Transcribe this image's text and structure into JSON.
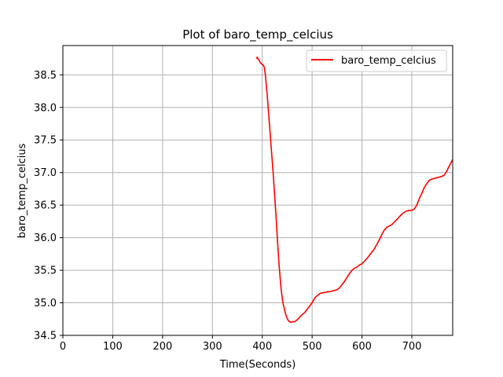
{
  "colors": {
    "series": "#ff0000",
    "grid": "#b0b0b0",
    "axes": "#000000",
    "background": "#ffffff"
  },
  "chart_data": {
    "type": "line",
    "title": "Plot of baro_temp_celcius",
    "xlabel": "Time(Seconds)",
    "ylabel": "baro_temp_celcius",
    "xlim": [
      0,
      782
    ],
    "ylim": [
      34.5,
      38.95
    ],
    "xticks": [
      0,
      100,
      200,
      300,
      400,
      500,
      600,
      700
    ],
    "xtick_labels": [
      "0",
      "100",
      "200",
      "300",
      "400",
      "500",
      "600",
      "700"
    ],
    "yticks": [
      34.5,
      35.0,
      35.5,
      36.0,
      36.5,
      37.0,
      37.5,
      38.0,
      38.5
    ],
    "ytick_labels": [
      "34.5",
      "35.0",
      "35.5",
      "36.0",
      "36.5",
      "37.0",
      "37.5",
      "38.0",
      "38.5"
    ],
    "grid": true,
    "legend": {
      "position": "top-right",
      "entries": [
        "baro_temp_celcius"
      ]
    },
    "series": [
      {
        "name": "baro_temp_celcius",
        "color": "#ff0000",
        "x": [
          388,
          390,
          392,
          394,
          396,
          398,
          400,
          402,
          404,
          406,
          408,
          410,
          412,
          414,
          416,
          418,
          420,
          422,
          424,
          426,
          428,
          430,
          432,
          434,
          436,
          438,
          440,
          442,
          444,
          446,
          448,
          450,
          452,
          455,
          458,
          461,
          464,
          467,
          470,
          473,
          476,
          479,
          482,
          485,
          488,
          491,
          494,
          497,
          500,
          503,
          506,
          509,
          512,
          515,
          518,
          521,
          524,
          527,
          530,
          535,
          540,
          545,
          550,
          555,
          560,
          565,
          570,
          575,
          580,
          585,
          590,
          595,
          600,
          605,
          610,
          615,
          620,
          625,
          630,
          635,
          640,
          645,
          650,
          655,
          660,
          665,
          670,
          675,
          680,
          685,
          690,
          695,
          700,
          705,
          710,
          715,
          720,
          725,
          730,
          735,
          740,
          745,
          750,
          755,
          760,
          765,
          770,
          775,
          780,
          782
        ],
        "y": [
          38.75,
          38.77,
          38.74,
          38.72,
          38.69,
          38.67,
          38.66,
          38.65,
          38.62,
          38.52,
          38.35,
          38.18,
          37.98,
          37.78,
          37.58,
          37.38,
          37.18,
          36.97,
          36.75,
          36.52,
          36.28,
          36.03,
          35.78,
          35.55,
          35.38,
          35.2,
          35.08,
          34.98,
          34.92,
          34.85,
          34.8,
          34.76,
          34.73,
          34.71,
          34.7,
          34.71,
          34.71,
          34.72,
          34.74,
          34.76,
          34.79,
          34.81,
          34.83,
          34.85,
          34.88,
          34.91,
          34.94,
          34.97,
          35.0,
          35.04,
          35.08,
          35.1,
          35.12,
          35.14,
          35.15,
          35.15,
          35.16,
          35.16,
          35.17,
          35.17,
          35.18,
          35.19,
          35.2,
          35.23,
          35.28,
          35.33,
          35.39,
          35.45,
          35.5,
          35.53,
          35.55,
          35.58,
          35.6,
          35.64,
          35.68,
          35.73,
          35.78,
          35.83,
          35.9,
          35.97,
          36.05,
          36.12,
          36.16,
          36.18,
          36.2,
          36.24,
          36.28,
          36.32,
          36.36,
          36.39,
          36.41,
          36.42,
          36.42,
          36.44,
          36.5,
          36.6,
          36.68,
          36.77,
          36.83,
          36.88,
          36.9,
          36.91,
          36.92,
          36.93,
          36.94,
          36.96,
          37.02,
          37.1,
          37.17,
          37.2
        ]
      }
    ]
  }
}
